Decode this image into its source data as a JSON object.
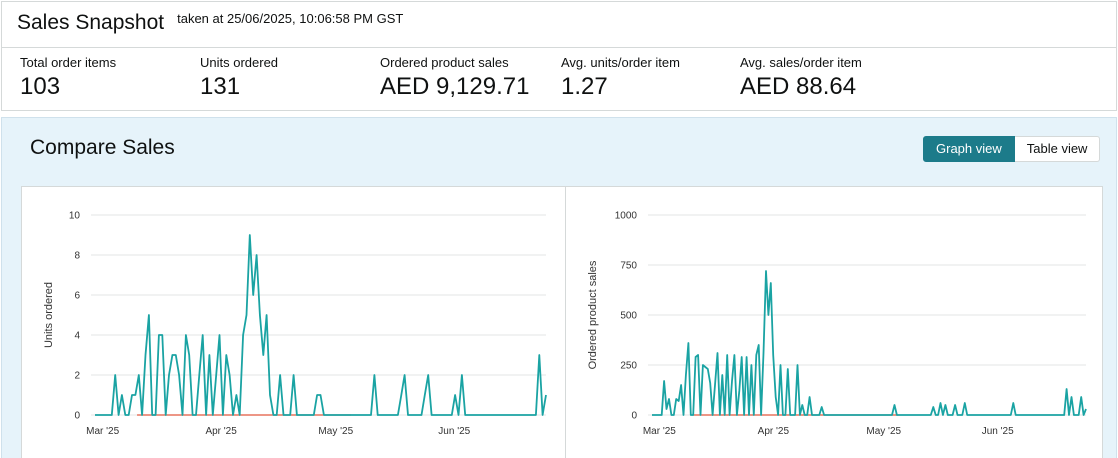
{
  "snapshot": {
    "title": "Sales Snapshot",
    "taken": "taken at 25/06/2025, 10:06:58 PM GST",
    "metrics": [
      {
        "label": "Total order items",
        "value": "103"
      },
      {
        "label": "Units ordered",
        "value": "131"
      },
      {
        "label": "Ordered product sales",
        "value": "AED 9,129.71"
      },
      {
        "label": "Avg. units/order item",
        "value": "1.27"
      },
      {
        "label": "Avg. sales/order item",
        "value": "AED 88.64"
      }
    ]
  },
  "compare": {
    "title": "Compare Sales",
    "graph_view_label": "Graph view",
    "table_view_label": "Table view"
  },
  "colors": {
    "series_primary": "#1aa3a3",
    "series_comparison": "#e2583e",
    "toggle_active": "#1c7b8a",
    "panel_background": "#e6f3fa"
  },
  "chart_data": [
    {
      "type": "line",
      "ylabel": "Units ordered",
      "xlabel": "",
      "ylim": [
        0,
        10
      ],
      "yticks": [
        0,
        2,
        4,
        6,
        8,
        10
      ],
      "x_start": "2025-02-27",
      "x_end": "2025-06-25",
      "x_tick_labels": [
        {
          "date": "2025-03-01",
          "label": "Mar '25"
        },
        {
          "date": "2025-04-01",
          "label": "Apr '25"
        },
        {
          "date": "2025-05-01",
          "label": "May '25"
        },
        {
          "date": "2025-06-01",
          "label": "Jun '25"
        }
      ],
      "grid": true,
      "series": [
        {
          "values": [
            0,
            0,
            0,
            0,
            0,
            0,
            2,
            0,
            1,
            0,
            0,
            1,
            1,
            2,
            0,
            3,
            5,
            0,
            0,
            4,
            4,
            0,
            2,
            3,
            3,
            2,
            0,
            4,
            3,
            0,
            0,
            2,
            4,
            0,
            3,
            0,
            2,
            4,
            0,
            3,
            2,
            0,
            1,
            0,
            4,
            5,
            9,
            6,
            8,
            5,
            3,
            5,
            1,
            0,
            0,
            2,
            0,
            0,
            0,
            2,
            0,
            0,
            0,
            0,
            0,
            0,
            1,
            1,
            0,
            0,
            0,
            0,
            0,
            0,
            0,
            0,
            0,
            0,
            0,
            0,
            0,
            0,
            0,
            2,
            0,
            0,
            0,
            0,
            0,
            0,
            0,
            1,
            2,
            0,
            0,
            0,
            0,
            0,
            1,
            2,
            0,
            0,
            0,
            0,
            0,
            0,
            0,
            1,
            0,
            2,
            0,
            0,
            0,
            0,
            0,
            0,
            0,
            0,
            0,
            0,
            0,
            0,
            0,
            0,
            0,
            0,
            0,
            0,
            0,
            0,
            0,
            0,
            3,
            0,
            1
          ]
        }
      ]
    },
    {
      "type": "line",
      "ylabel": "Ordered product sales",
      "xlabel": "",
      "ylim": [
        0,
        1000
      ],
      "yticks": [
        0,
        250,
        500,
        750,
        1000
      ],
      "x_start": "2025-02-27",
      "x_end": "2025-06-25",
      "x_tick_labels": [
        {
          "date": "2025-03-01",
          "label": "Mar '25"
        },
        {
          "date": "2025-04-01",
          "label": "Apr '25"
        },
        {
          "date": "2025-05-01",
          "label": "May '25"
        },
        {
          "date": "2025-06-01",
          "label": "Jun '25"
        }
      ],
      "grid": true,
      "series": [
        {
          "values": [
            0,
            0,
            0,
            0,
            0,
            170,
            30,
            80,
            0,
            0,
            80,
            70,
            150,
            0,
            200,
            360,
            0,
            0,
            290,
            300,
            0,
            250,
            240,
            230,
            160,
            0,
            150,
            310,
            0,
            200,
            0,
            300,
            0,
            170,
            300,
            0,
            120,
            290,
            0,
            290,
            0,
            250,
            0,
            300,
            350,
            0,
            310,
            720,
            500,
            660,
            300,
            90,
            0,
            250,
            0,
            0,
            230,
            0,
            0,
            0,
            250,
            0,
            50,
            0,
            0,
            90,
            0,
            0,
            0,
            0,
            40,
            0,
            0,
            0,
            0,
            0,
            0,
            0,
            0,
            0,
            0,
            0,
            0,
            0,
            0,
            0,
            0,
            0,
            0,
            0,
            0,
            0,
            0,
            0,
            0,
            0,
            0,
            0,
            0,
            0,
            50,
            0,
            0,
            0,
            0,
            0,
            0,
            0,
            0,
            0,
            0,
            0,
            0,
            0,
            0,
            0,
            40,
            0,
            0,
            60,
            0,
            50,
            0,
            0,
            0,
            50,
            0,
            0,
            0,
            60,
            0,
            0,
            0,
            0,
            0,
            0,
            0,
            0,
            0,
            0,
            0,
            0,
            0,
            0,
            0,
            0,
            0,
            0,
            0,
            60,
            0,
            0,
            0,
            0,
            0,
            0,
            0,
            0,
            0,
            0,
            0,
            0,
            0,
            0,
            0,
            0,
            0,
            0,
            0,
            0,
            0,
            130,
            0,
            90,
            0,
            0,
            0,
            90,
            0,
            30
          ]
        }
      ]
    }
  ]
}
